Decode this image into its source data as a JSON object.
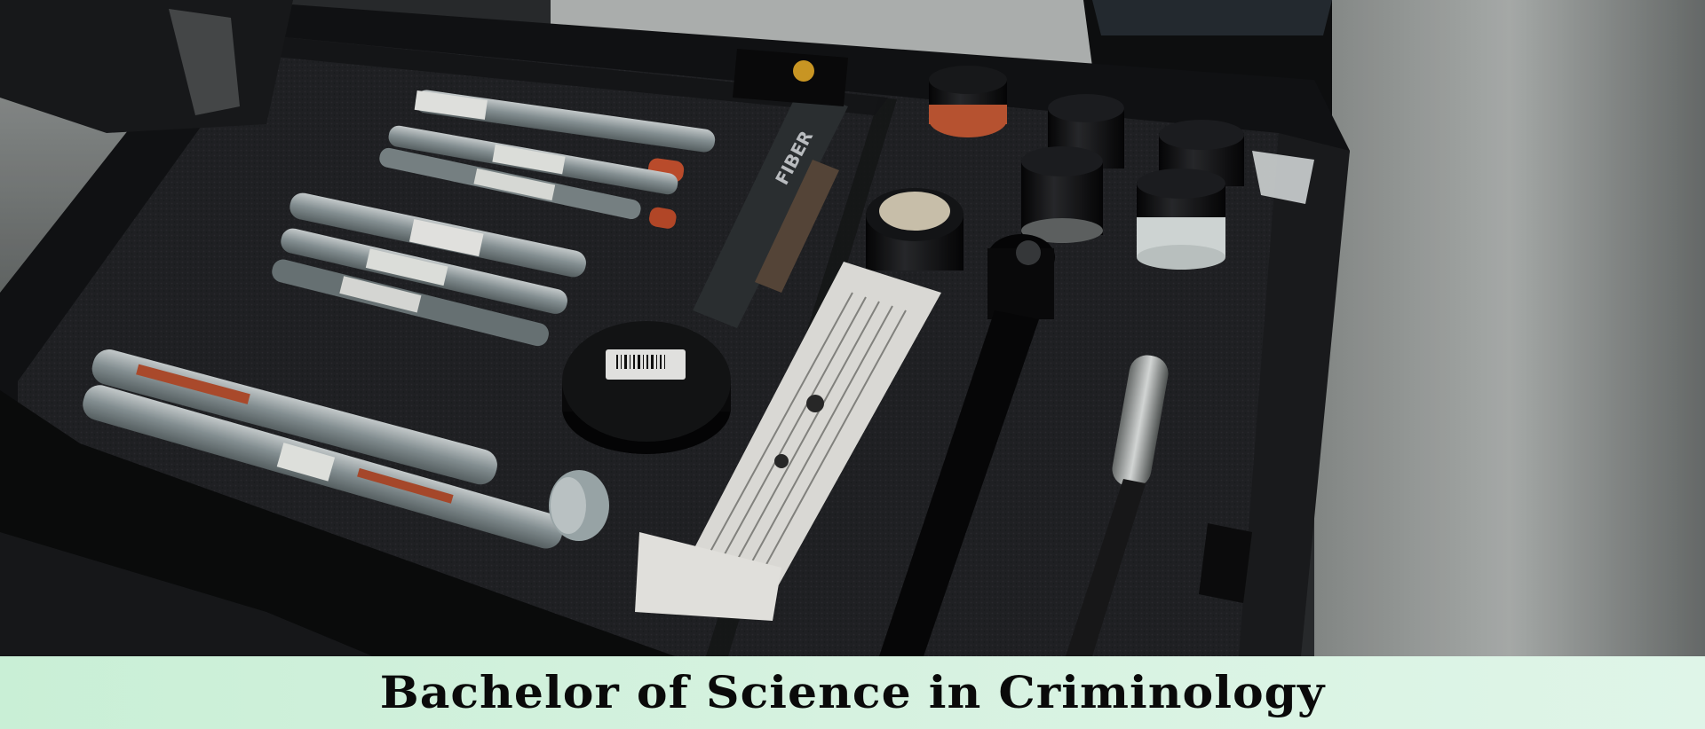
{
  "caption": {
    "title": "Bachelor of Science in Criminology"
  },
  "colors": {
    "banner_left": "#c9efd6",
    "banner_right": "#dff5e8",
    "foam": "#232427",
    "case_shell": "#141517",
    "wall": "#a9adab",
    "caption_text": "#0a0a0a"
  }
}
